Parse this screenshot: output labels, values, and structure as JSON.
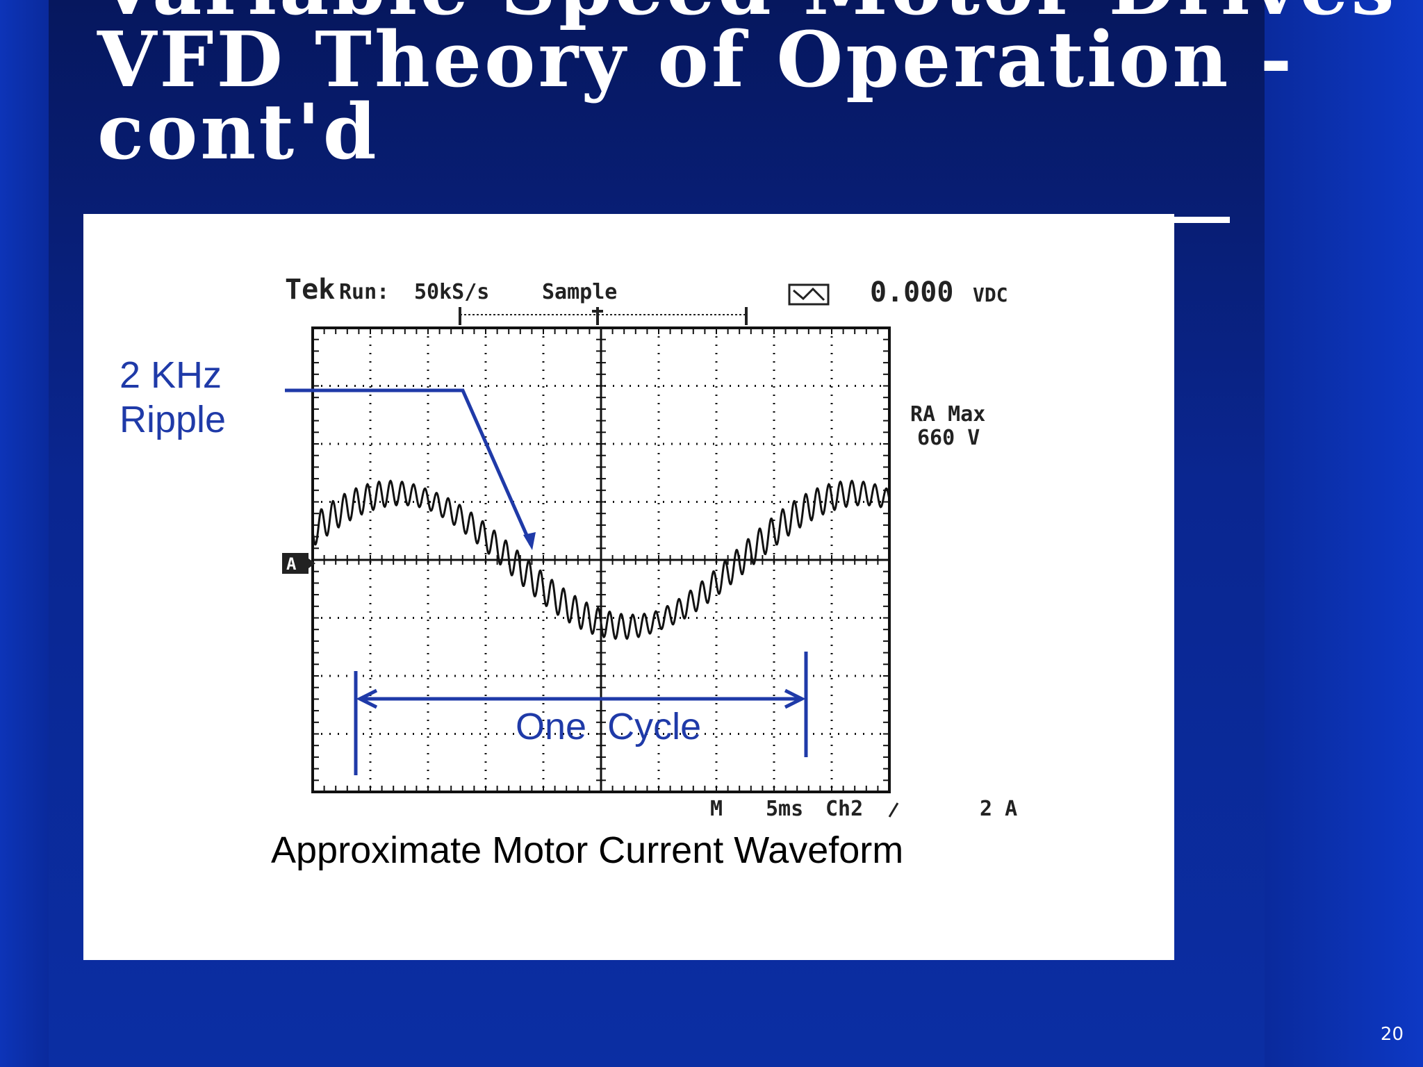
{
  "slide": {
    "title_lines": [
      "Variable Speed Motor Drives",
      "VFD Theory of Operation -",
      "cont'd"
    ],
    "caption": "Approximate Motor Current Waveform",
    "page_number": "20"
  },
  "chart_data": {
    "type": "line",
    "scope_header": {
      "brand": "Tek",
      "run": "Run:",
      "sample_rate": "50kS/s",
      "mode": "Sample",
      "reading": "0.000",
      "reading_unit": "VDC"
    },
    "side_readout": [
      "RA Max",
      "660 V"
    ],
    "channel_marker": "A",
    "footer": {
      "m_label": "M",
      "timebase": "5ms",
      "trigger": "Ch2",
      "scale": "2 A"
    },
    "annotations": {
      "ripple": [
        "2 KHz",
        "Ripple"
      ],
      "cycle": "One  Cycle"
    },
    "grid": {
      "divisions_x": 10,
      "divisions_y": 8
    },
    "series": [
      {
        "description_free": true,
        "fundamental_cycles_visible": 1.25,
        "ripple_hz": 2000,
        "amplitude_div": 1.15,
        "phase_start_div": 0.8,
        "values_note": ""
      }
    ],
    "colors": {
      "trace": "#111111",
      "annotation": "#1f3aa8",
      "grid": "#111111"
    }
  }
}
